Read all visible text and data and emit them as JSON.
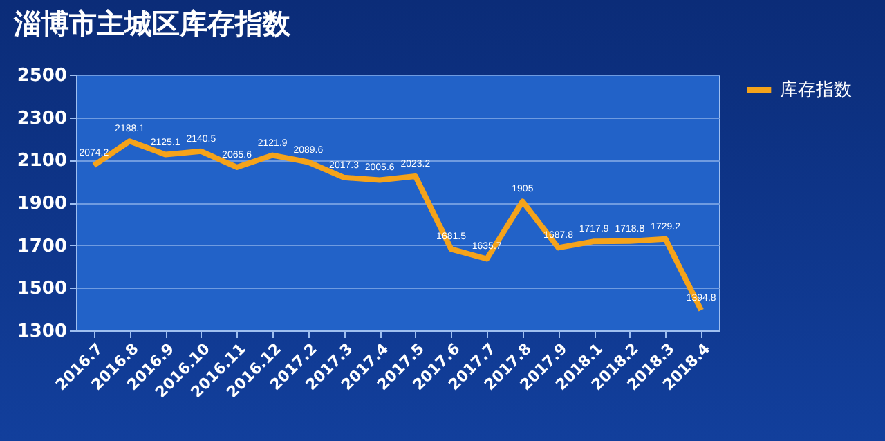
{
  "chart_data": {
    "type": "line",
    "title": "淄博市主城区库存指数",
    "categories": [
      "2016.7",
      "2016.8",
      "2016.9",
      "2016.10",
      "2016.11",
      "2016.12",
      "2017.2",
      "2017.3",
      "2017.4",
      "2017.5",
      "2017.6",
      "2017.7",
      "2017.8",
      "2017.9",
      "2018.1",
      "2018.2",
      "2018.3",
      "2018.4"
    ],
    "series": [
      {
        "name": "库存指数",
        "color": "#f5a31a",
        "values": [
          2074.2,
          2188.1,
          2125.1,
          2140.5,
          2065.6,
          2121.9,
          2089.6,
          2017.3,
          2005.6,
          2023.2,
          1681.5,
          1635.7,
          1905,
          1687.8,
          1717.9,
          1718.8,
          1729.2,
          1394.8
        ]
      }
    ],
    "ylim": [
      1300,
      2500
    ],
    "yticks": [
      1300,
      1500,
      1700,
      1900,
      2100,
      2300,
      2500
    ],
    "grid": "y",
    "legend": "right",
    "data_labels": true,
    "marker": "none",
    "line_style": "solid"
  }
}
